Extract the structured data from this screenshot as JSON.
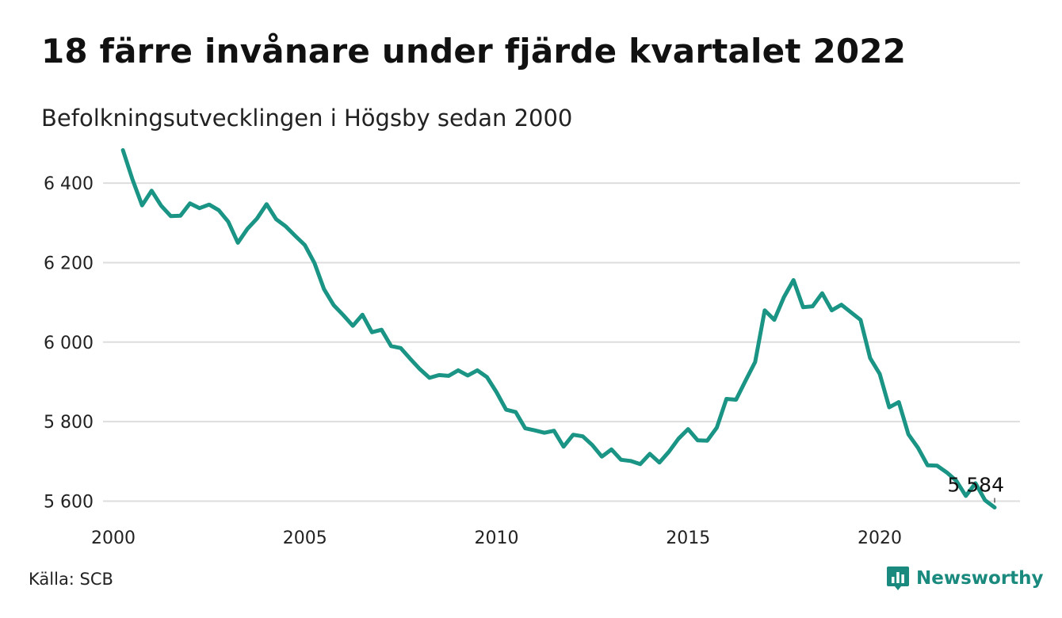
{
  "title": "18 färre invånare under fjärde kvartalet 2022",
  "subtitle": "Befolkningsutvecklingen i Högsby sedan 2000",
  "source": "Källa: SCB",
  "brand": {
    "name": "Newsworthy",
    "icon": "newsworthy-logo-icon",
    "color": "#1a8a7e"
  },
  "colors": {
    "line": "#1a9484",
    "grid": "#dddddd",
    "text": "#111111"
  },
  "chart_data": {
    "type": "line",
    "title": "18 färre invånare under fjärde kvartalet 2022",
    "subtitle": "Befolkningsutvecklingen i Högsby sedan 2000",
    "xlabel": "",
    "ylabel": "",
    "x_ticks": [
      2000,
      2005,
      2010,
      2015,
      2020
    ],
    "y_ticks": [
      5600,
      5800,
      6000,
      6200,
      6400
    ],
    "y_tick_labels": [
      "5 600",
      "5 800",
      "6 000",
      "6 200",
      "6 400"
    ],
    "xlim": [
      2000,
      2023
    ],
    "ylim": [
      5565,
      6490
    ],
    "grid": true,
    "end_label": "5 584",
    "series": [
      {
        "values": [
          [
            2000.25,
            6483
          ],
          [
            2000.5,
            6409
          ],
          [
            2000.75,
            6344
          ],
          [
            2001.0,
            6381
          ],
          [
            2001.25,
            6343
          ],
          [
            2001.5,
            6317
          ],
          [
            2001.75,
            6318
          ],
          [
            2002.0,
            6349
          ],
          [
            2002.25,
            6337
          ],
          [
            2002.5,
            6346
          ],
          [
            2002.75,
            6332
          ],
          [
            2003.0,
            6303
          ],
          [
            2003.25,
            6250
          ],
          [
            2003.5,
            6285
          ],
          [
            2003.75,
            6311
          ],
          [
            2004.0,
            6347
          ],
          [
            2004.25,
            6309
          ],
          [
            2004.5,
            6291
          ],
          [
            2004.75,
            6267
          ],
          [
            2005.0,
            6244
          ],
          [
            2005.25,
            6199
          ],
          [
            2005.5,
            6133
          ],
          [
            2005.75,
            6093
          ],
          [
            2006.0,
            6068
          ],
          [
            2006.25,
            6041
          ],
          [
            2006.5,
            6069
          ],
          [
            2006.75,
            6025
          ],
          [
            2007.0,
            6031
          ],
          [
            2007.25,
            5990
          ],
          [
            2007.5,
            5985
          ],
          [
            2007.75,
            5958
          ],
          [
            2008.0,
            5932
          ],
          [
            2008.25,
            5910
          ],
          [
            2008.5,
            5917
          ],
          [
            2008.75,
            5915
          ],
          [
            2009.0,
            5929
          ],
          [
            2009.25,
            5916
          ],
          [
            2009.5,
            5929
          ],
          [
            2009.75,
            5912
          ],
          [
            2010.0,
            5874
          ],
          [
            2010.25,
            5830
          ],
          [
            2010.5,
            5824
          ],
          [
            2010.75,
            5783
          ],
          [
            2011.0,
            5778
          ],
          [
            2011.25,
            5772
          ],
          [
            2011.5,
            5777
          ],
          [
            2011.75,
            5737
          ],
          [
            2012.0,
            5767
          ],
          [
            2012.25,
            5763
          ],
          [
            2012.5,
            5741
          ],
          [
            2012.75,
            5712
          ],
          [
            2013.0,
            5730
          ],
          [
            2013.25,
            5704
          ],
          [
            2013.5,
            5701
          ],
          [
            2013.75,
            5693
          ],
          [
            2014.0,
            5719
          ],
          [
            2014.25,
            5697
          ],
          [
            2014.5,
            5724
          ],
          [
            2014.75,
            5757
          ],
          [
            2015.0,
            5781
          ],
          [
            2015.25,
            5753
          ],
          [
            2015.5,
            5752
          ],
          [
            2015.75,
            5785
          ],
          [
            2016.0,
            5857
          ],
          [
            2016.25,
            5855
          ],
          [
            2016.5,
            5903
          ],
          [
            2016.75,
            5950
          ],
          [
            2017.0,
            6080
          ],
          [
            2017.25,
            6056
          ],
          [
            2017.5,
            6113
          ],
          [
            2017.75,
            6156
          ],
          [
            2018.0,
            6088
          ],
          [
            2018.25,
            6090
          ],
          [
            2018.5,
            6123
          ],
          [
            2018.75,
            6080
          ],
          [
            2019.0,
            6094
          ],
          [
            2019.25,
            6075
          ],
          [
            2019.5,
            6056
          ],
          [
            2019.75,
            5960
          ],
          [
            2020.0,
            5920
          ],
          [
            2020.25,
            5836
          ],
          [
            2020.5,
            5849
          ],
          [
            2020.75,
            5768
          ],
          [
            2021.0,
            5734
          ],
          [
            2021.25,
            5690
          ],
          [
            2021.5,
            5689
          ],
          [
            2021.75,
            5672
          ],
          [
            2022.0,
            5651
          ],
          [
            2022.25,
            5613
          ],
          [
            2022.5,
            5645
          ],
          [
            2022.75,
            5602
          ],
          [
            2023.0,
            5584
          ]
        ]
      }
    ]
  }
}
